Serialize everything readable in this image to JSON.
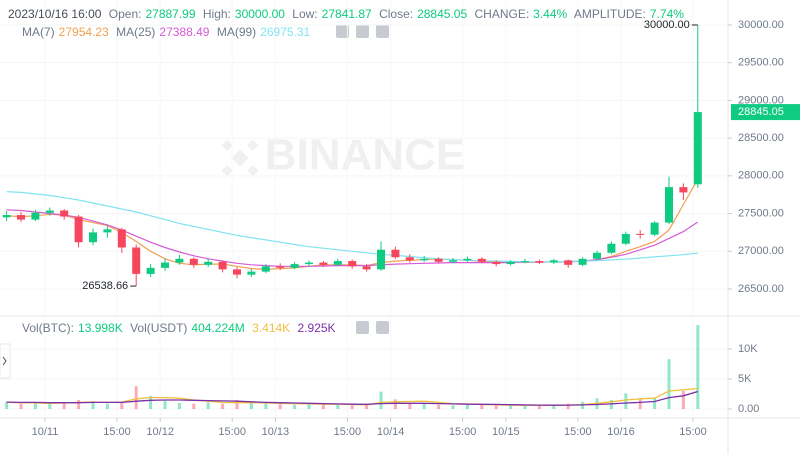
{
  "chart_data": {
    "type": "candlestick",
    "x": [
      "2023/10/10 16:00",
      "2023/10/10 19:00",
      "2023/10/10 22:00",
      "2023/10/11 01:00",
      "2023/10/11 04:00",
      "2023/10/11 07:00",
      "2023/10/11 10:00",
      "2023/10/11 13:00",
      "2023/10/11 16:00",
      "2023/10/11 19:00",
      "2023/10/11 22:00",
      "2023/10/12 01:00",
      "2023/10/12 04:00",
      "2023/10/12 07:00",
      "2023/10/12 10:00",
      "2023/10/12 13:00",
      "2023/10/12 16:00",
      "2023/10/12 19:00",
      "2023/10/12 22:00",
      "2023/10/13 01:00",
      "2023/10/13 04:00",
      "2023/10/13 07:00",
      "2023/10/13 10:00",
      "2023/10/13 13:00",
      "2023/10/13 16:00",
      "2023/10/13 19:00",
      "2023/10/13 22:00",
      "2023/10/14 01:00",
      "2023/10/14 04:00",
      "2023/10/14 07:00",
      "2023/10/14 10:00",
      "2023/10/14 13:00",
      "2023/10/14 16:00",
      "2023/10/14 19:00",
      "2023/10/14 22:00",
      "2023/10/15 01:00",
      "2023/10/15 04:00",
      "2023/10/15 07:00",
      "2023/10/15 10:00",
      "2023/10/15 13:00",
      "2023/10/15 16:00",
      "2023/10/15 19:00",
      "2023/10/15 22:00",
      "2023/10/16 01:00",
      "2023/10/16 04:00",
      "2023/10/16 07:00",
      "2023/10/16 10:00",
      "2023/10/16 13:00",
      "2023/10/16 16:00"
    ],
    "ohlc": [
      [
        27450,
        27530,
        27400,
        27480
      ],
      [
        27480,
        27520,
        27390,
        27420
      ],
      [
        27420,
        27550,
        27400,
        27510
      ],
      [
        27510,
        27580,
        27470,
        27540
      ],
      [
        27540,
        27560,
        27420,
        27460
      ],
      [
        27460,
        27480,
        27050,
        27120
      ],
      [
        27120,
        27300,
        27080,
        27250
      ],
      [
        27250,
        27340,
        27180,
        27290
      ],
      [
        27290,
        27310,
        26980,
        27050
      ],
      [
        27050,
        27090,
        26538.66,
        26700
      ],
      [
        26700,
        26830,
        26660,
        26780
      ],
      [
        26780,
        26900,
        26740,
        26850
      ],
      [
        26850,
        26950,
        26820,
        26900
      ],
      [
        26900,
        26920,
        26780,
        26820
      ],
      [
        26820,
        26900,
        26790,
        26860
      ],
      [
        26860,
        26880,
        26720,
        26760
      ],
      [
        26760,
        26790,
        26640,
        26690
      ],
      [
        26690,
        26770,
        26660,
        26730
      ],
      [
        26730,
        26830,
        26710,
        26800
      ],
      [
        26800,
        26840,
        26750,
        26780
      ],
      [
        26780,
        26860,
        26760,
        26830
      ],
      [
        26830,
        26880,
        26800,
        26850
      ],
      [
        26850,
        26870,
        26790,
        26820
      ],
      [
        26820,
        26900,
        26800,
        26870
      ],
      [
        26870,
        26890,
        26770,
        26800
      ],
      [
        26800,
        26830,
        26730,
        26760
      ],
      [
        26760,
        27130,
        26740,
        27020
      ],
      [
        27020,
        27060,
        26900,
        26920
      ],
      [
        26920,
        26960,
        26850,
        26880
      ],
      [
        26880,
        26940,
        26860,
        26900
      ],
      [
        26900,
        26920,
        26840,
        26860
      ],
      [
        26860,
        26910,
        26840,
        26880
      ],
      [
        26880,
        26930,
        26860,
        26900
      ],
      [
        26900,
        26920,
        26840,
        26860
      ],
      [
        26860,
        26880,
        26800,
        26830
      ],
      [
        26830,
        26880,
        26810,
        26860
      ],
      [
        26860,
        26900,
        26840,
        26870
      ],
      [
        26870,
        26890,
        26830,
        26850
      ],
      [
        26850,
        26900,
        26830,
        26880
      ],
      [
        26880,
        26890,
        26780,
        26820
      ],
      [
        26820,
        26920,
        26800,
        26900
      ],
      [
        26900,
        27010,
        26880,
        26980
      ],
      [
        26980,
        27130,
        26960,
        27100
      ],
      [
        27100,
        27260,
        27080,
        27230
      ],
      [
        27230,
        27280,
        27170,
        27220
      ],
      [
        27220,
        27400,
        27200,
        27380
      ],
      [
        27380,
        27990,
        27360,
        27850
      ],
      [
        27850,
        27900,
        27680,
        27780
      ],
      [
        27887.99,
        30000,
        27841.87,
        28845.05
      ]
    ],
    "up_color": "#0ecb81",
    "down_color": "#f6465d",
    "max_label": "30000.00",
    "ylim": [
      26155,
      30331
    ],
    "yticks": [
      {
        "value": 26500,
        "label": "26500.00"
      },
      {
        "value": 27000,
        "label": "27000.00"
      },
      {
        "value": 27500,
        "label": "27500.00"
      },
      {
        "value": 28000,
        "label": "28000.00"
      },
      {
        "value": 28500,
        "label": "28500.00"
      },
      {
        "value": 29000,
        "label": "29000.00"
      },
      {
        "value": 29500,
        "label": "29500.00"
      },
      {
        "value": 30000,
        "label": "30000.00"
      }
    ],
    "grid": true,
    "xticks": [
      {
        "value": "2023/10/11 00:00",
        "label": "10/11"
      },
      {
        "value": "2023/10/11 15:00",
        "label": "15:00"
      },
      {
        "value": "2023/10/12 00:00",
        "label": "10/12"
      },
      {
        "value": "2023/10/12 15:00",
        "label": "15:00"
      },
      {
        "value": "2023/10/13 00:00",
        "label": "10/13"
      },
      {
        "value": "2023/10/13 15:00",
        "label": "15:00"
      },
      {
        "value": "2023/10/14 00:00",
        "label": "10/14"
      },
      {
        "value": "2023/10/14 15:00",
        "label": "15:00"
      },
      {
        "value": "2023/10/15 00:00",
        "label": "10/15"
      },
      {
        "value": "2023/10/15 15:00",
        "label": "15:00"
      },
      {
        "value": "2023/10/16 00:00",
        "label": "10/16"
      },
      {
        "value": "2023/10/16 15:00",
        "label": "15:00"
      }
    ],
    "series": [
      {
        "name": "MA(7)",
        "color": "#f0a050",
        "values": [
          27470,
          27460,
          27470,
          27490,
          27480,
          27420,
          27380,
          27340,
          27250,
          27130,
          27000,
          26900,
          26840,
          26820,
          26830,
          26830,
          26800,
          26770,
          26760,
          26770,
          26780,
          26800,
          26820,
          26820,
          26820,
          26810,
          26850,
          26870,
          26880,
          26890,
          26900,
          26890,
          26880,
          26870,
          26860,
          26860,
          26855,
          26855,
          26860,
          26860,
          26865,
          26890,
          26930,
          27000,
          27060,
          27130,
          27280,
          27620,
          27954.23
        ]
      },
      {
        "name": "MA(25)",
        "color": "#d65ad6",
        "values": [
          27550,
          27540,
          27520,
          27500,
          27480,
          27450,
          27400,
          27350,
          27280,
          27200,
          27120,
          27050,
          26990,
          26940,
          26900,
          26870,
          26840,
          26820,
          26810,
          26800,
          26800,
          26800,
          26805,
          26810,
          26810,
          26810,
          26820,
          26830,
          26835,
          26840,
          26845,
          26850,
          26850,
          26850,
          26850,
          26850,
          26855,
          26855,
          26860,
          26860,
          26870,
          26890,
          26920,
          26960,
          27020,
          27080,
          27170,
          27260,
          27388.49
        ]
      },
      {
        "name": "MA(99)",
        "color": "#7fe3f0",
        "values": [
          27790,
          27780,
          27760,
          27740,
          27710,
          27680,
          27640,
          27600,
          27560,
          27520,
          27470,
          27420,
          27370,
          27330,
          27290,
          27250,
          27210,
          27180,
          27150,
          27120,
          27090,
          27060,
          27040,
          27020,
          27000,
          26980,
          26960,
          26945,
          26930,
          26915,
          26900,
          26890,
          26880,
          26875,
          26870,
          26865,
          26860,
          26860,
          26860,
          26865,
          26870,
          26875,
          26885,
          26895,
          26910,
          26925,
          26940,
          26955,
          26975.31
        ]
      }
    ],
    "watermark": "BINANCE",
    "header": {
      "open_label": "Open:",
      "high_label": "High:",
      "low_label": "Low:",
      "close_label": "Close:",
      "change_label": "CHANGE:",
      "change": {
        "value": 3.44,
        "label": "3.44%"
      },
      "amplitude_label": "AMPLITUDE:",
      "amplitude": {
        "value": 7.74,
        "label": "7.74%"
      }
    },
    "volume": {
      "name": "Vol(BTC):",
      "values": [
        1200,
        900,
        1000,
        800,
        1100,
        1500,
        1300,
        900,
        1200,
        3800,
        2200,
        1400,
        1000,
        900,
        1100,
        900,
        1500,
        1000,
        900,
        800,
        700,
        900,
        800,
        700,
        600,
        700,
        2900,
        1600,
        1000,
        900,
        700,
        600,
        800,
        700,
        600,
        500,
        600,
        500,
        700,
        900,
        1200,
        1800,
        1500,
        2600,
        1700,
        1900,
        8300,
        3000,
        13998
      ],
      "last_value_label": "13.998K",
      "quote": {
        "name": "Vol(USDT)",
        "value": 404224000,
        "value_label": "404.224M"
      },
      "ylim": [
        -1500,
        15167
      ],
      "yticks": [
        {
          "value": 0,
          "label": "0.00"
        },
        {
          "value": 5000,
          "label": "5K"
        },
        {
          "value": 10000,
          "label": "10K"
        }
      ],
      "series": [
        {
          "color": "#f0c040",
          "value_label": "3.414K",
          "values": [
            1100,
            1050,
            1000,
            950,
            1000,
            1100,
            1150,
            1100,
            1150,
            1700,
            1900,
            1900,
            1800,
            1500,
            1300,
            1100,
            1050,
            1050,
            1000,
            950,
            900,
            850,
            800,
            800,
            750,
            700,
            1100,
            1200,
            1250,
            1300,
            1100,
            900,
            850,
            750,
            700,
            650,
            600,
            600,
            600,
            650,
            750,
            950,
            1200,
            1500,
            1700,
            1800,
            3000,
            3200,
            3414
          ]
        },
        {
          "color": "#7b2fa8",
          "value_label": "2.925K",
          "values": [
            1150,
            1100,
            1100,
            1050,
            1050,
            1050,
            1100,
            1100,
            1100,
            1300,
            1450,
            1500,
            1500,
            1450,
            1400,
            1350,
            1300,
            1200,
            1100,
            1050,
            1000,
            950,
            900,
            850,
            800,
            780,
            900,
            950,
            950,
            950,
            900,
            850,
            800,
            780,
            760,
            720,
            680,
            650,
            640,
            650,
            680,
            750,
            850,
            1000,
            1100,
            1250,
            1900,
            2200,
            2925
          ]
        }
      ]
    }
  }
}
